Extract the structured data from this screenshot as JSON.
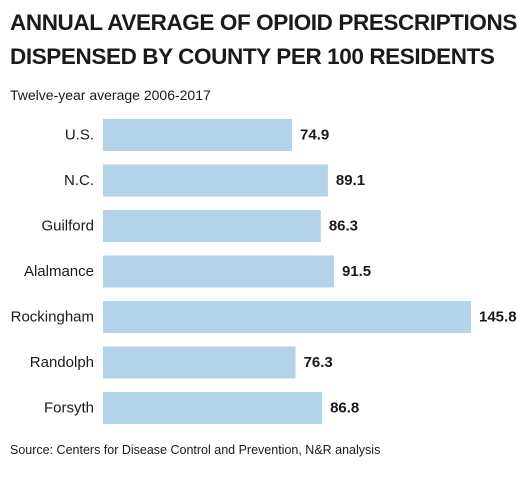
{
  "title_lines": [
    "ANNUAL AVERAGE OF OPIOID PRESCRIPTIONS",
    "DISPENSED BY COUNTY PER 100 RESIDENTS"
  ],
  "subtitle": "Twelve-year average 2006-2017",
  "source": "Source: Centers for Disease Control and Prevention, N&R analysis",
  "chart_data": {
    "type": "bar",
    "orientation": "horizontal",
    "title": "ANNUAL AVERAGE OF OPIOID PRESCRIPTIONS DISPENSED BY COUNTY PER 100 RESIDENTS",
    "subtitle": "Twelve-year average 2006-2017",
    "categories": [
      "U.S.",
      "N.C.",
      "Guilford",
      "Alalmance",
      "Rockingham",
      "Randolph",
      "Forsyth"
    ],
    "values": [
      74.9,
      89.1,
      86.3,
      91.5,
      145.8,
      76.3,
      86.8
    ],
    "value_labels": [
      "74.9",
      "89.1",
      "86.3",
      "91.5",
      "145.8",
      "76.3",
      "86.8"
    ],
    "xlim": [
      0,
      145.8
    ],
    "grid": false,
    "legend": "none",
    "bar_color": "#b3d3e8",
    "text_color": "#1a1a1a"
  }
}
